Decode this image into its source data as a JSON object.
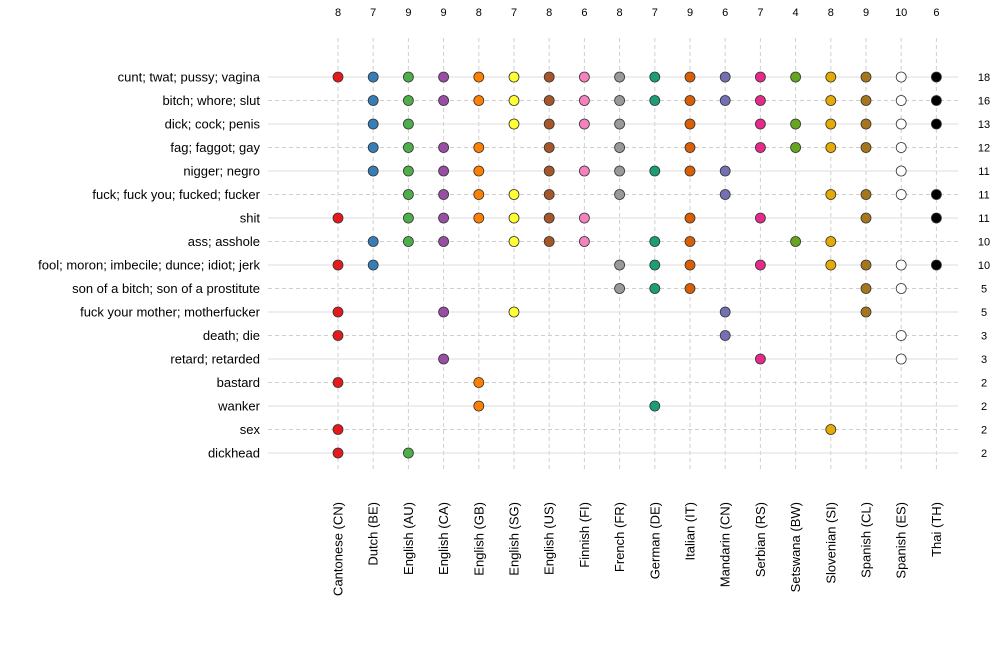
{
  "chart_data": {
    "type": "dot-matrix",
    "title": "",
    "columns": [
      "Cantonese (CN)",
      "Dutch (BE)",
      "English (AU)",
      "English (CA)",
      "English (GB)",
      "English (SG)",
      "English (US)",
      "Finnish (FI)",
      "French (FR)",
      "German (DE)",
      "Italian (IT)",
      "Mandarin (CN)",
      "Serbian (RS)",
      "Setswana (BW)",
      "Slovenian (SI)",
      "Spanish (CL)",
      "Spanish (ES)",
      "Thai (TH)"
    ],
    "column_colors": [
      "#e41a1c",
      "#377eb8",
      "#4daf4a",
      "#984ea3",
      "#ff7f00",
      "#ffff33",
      "#a65628",
      "#f781bf",
      "#999999",
      "#1b9e77",
      "#d95f02",
      "#7570b3",
      "#e7298a",
      "#66a61e",
      "#e6ab02",
      "#a6761d",
      "#ffffff",
      "#000000"
    ],
    "column_totals": [
      "8",
      "7",
      "9",
      "9",
      "8",
      "7",
      "8",
      "6",
      "8",
      "7",
      "9",
      "6",
      "7",
      "4",
      "8",
      "9",
      "10",
      "6"
    ],
    "rows": [
      {
        "label": "cunt; twat; pussy; vagina",
        "total": "18",
        "present": [
          1,
          1,
          1,
          1,
          1,
          1,
          1,
          1,
          1,
          1,
          1,
          1,
          1,
          1,
          1,
          1,
          1,
          1
        ]
      },
      {
        "label": "bitch; whore; slut",
        "total": "16",
        "present": [
          0,
          1,
          1,
          1,
          1,
          1,
          1,
          1,
          1,
          1,
          1,
          1,
          1,
          0,
          1,
          1,
          1,
          1
        ]
      },
      {
        "label": "dick; cock; penis",
        "total": "13",
        "present": [
          0,
          1,
          1,
          0,
          0,
          1,
          1,
          1,
          1,
          0,
          1,
          0,
          1,
          1,
          1,
          1,
          1,
          1
        ]
      },
      {
        "label": "fag; faggot; gay",
        "total": "12",
        "present": [
          0,
          1,
          1,
          1,
          1,
          0,
          1,
          0,
          1,
          0,
          1,
          0,
          1,
          1,
          1,
          1,
          1,
          0
        ]
      },
      {
        "label": "nigger; negro",
        "total": "11",
        "present": [
          0,
          1,
          1,
          1,
          1,
          0,
          1,
          1,
          1,
          1,
          1,
          1,
          0,
          0,
          0,
          0,
          1,
          0
        ]
      },
      {
        "label": "fuck; fuck you; fucked; fucker",
        "total": "11",
        "present": [
          0,
          0,
          1,
          1,
          1,
          1,
          1,
          0,
          1,
          0,
          0,
          1,
          0,
          0,
          1,
          1,
          1,
          1
        ]
      },
      {
        "label": "shit",
        "total": "11",
        "present": [
          1,
          0,
          1,
          1,
          1,
          1,
          1,
          1,
          0,
          0,
          1,
          0,
          1,
          0,
          0,
          1,
          0,
          1
        ]
      },
      {
        "label": "ass; asshole",
        "total": "10",
        "present": [
          0,
          1,
          1,
          1,
          0,
          1,
          1,
          1,
          0,
          1,
          1,
          0,
          0,
          1,
          1,
          0,
          0,
          0
        ]
      },
      {
        "label": "fool; moron; imbecile; dunce; idiot; jerk",
        "total": "10",
        "present": [
          1,
          1,
          0,
          0,
          0,
          0,
          0,
          0,
          1,
          1,
          1,
          0,
          1,
          0,
          1,
          1,
          1,
          1
        ]
      },
      {
        "label": "son of a bitch; son of a prostitute",
        "total": "5",
        "present": [
          0,
          0,
          0,
          0,
          0,
          0,
          0,
          0,
          1,
          1,
          1,
          0,
          0,
          0,
          0,
          1,
          1,
          0
        ]
      },
      {
        "label": "fuck your mother; motherfucker",
        "total": "5",
        "present": [
          1,
          0,
          0,
          1,
          0,
          1,
          0,
          0,
          0,
          0,
          0,
          1,
          0,
          0,
          0,
          1,
          0,
          0
        ]
      },
      {
        "label": "death; die",
        "total": "3",
        "present": [
          1,
          0,
          0,
          0,
          0,
          0,
          0,
          0,
          0,
          0,
          0,
          1,
          0,
          0,
          0,
          0,
          1,
          0
        ]
      },
      {
        "label": "retard; retarded",
        "total": "3",
        "present": [
          0,
          0,
          0,
          1,
          0,
          0,
          0,
          0,
          0,
          0,
          0,
          0,
          1,
          0,
          0,
          0,
          1,
          0
        ]
      },
      {
        "label": "bastard",
        "total": "2",
        "present": [
          1,
          0,
          0,
          0,
          1,
          0,
          0,
          0,
          0,
          0,
          0,
          0,
          0,
          0,
          0,
          0,
          0,
          0
        ]
      },
      {
        "label": "wanker",
        "total": "2",
        "present": [
          0,
          0,
          0,
          0,
          1,
          0,
          0,
          0,
          0,
          1,
          0,
          0,
          0,
          0,
          0,
          0,
          0,
          0
        ]
      },
      {
        "label": "sex",
        "total": "2",
        "present": [
          1,
          0,
          0,
          0,
          0,
          0,
          0,
          0,
          0,
          0,
          0,
          0,
          0,
          0,
          1,
          0,
          0,
          0
        ]
      },
      {
        "label": "dickhead",
        "total": "2",
        "present": [
          1,
          0,
          1,
          0,
          0,
          0,
          0,
          0,
          0,
          0,
          0,
          0,
          0,
          0,
          0,
          0,
          0,
          0
        ]
      }
    ]
  }
}
